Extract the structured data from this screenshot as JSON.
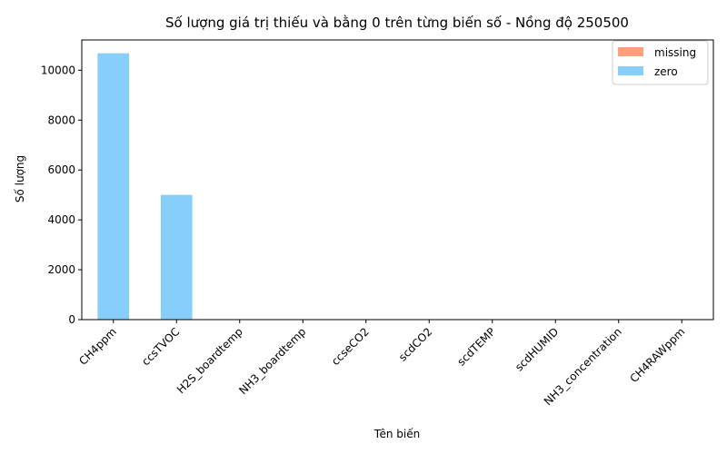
{
  "chart_data": {
    "type": "bar",
    "title": "Số lượng giá trị thiếu và bằng 0 trên từng biến số - Nồng độ 250500",
    "xlabel": "Tên biến",
    "ylabel": "Số lượng",
    "categories": [
      "CH4ppm",
      "ccsTVOC",
      "H2S_boardtemp",
      "NH3_boardtemp",
      "ccseCO2",
      "scdCO2",
      "scdTEMP",
      "scdHUMID",
      "NH3_concentration",
      "CH4RAWppm"
    ],
    "series": [
      {
        "name": "missing",
        "color": "#FFA07A",
        "values": [
          0,
          0,
          0,
          0,
          0,
          0,
          0,
          0,
          0,
          0
        ]
      },
      {
        "name": "zero",
        "color": "#87CEFA",
        "values": [
          10680,
          5000,
          0,
          0,
          0,
          0,
          0,
          0,
          0,
          0
        ]
      }
    ],
    "stacked": true,
    "ylim": [
      0,
      11214
    ],
    "yticks": [
      0,
      2000,
      4000,
      6000,
      8000,
      10000
    ],
    "grid": false,
    "legend": "top-right"
  }
}
